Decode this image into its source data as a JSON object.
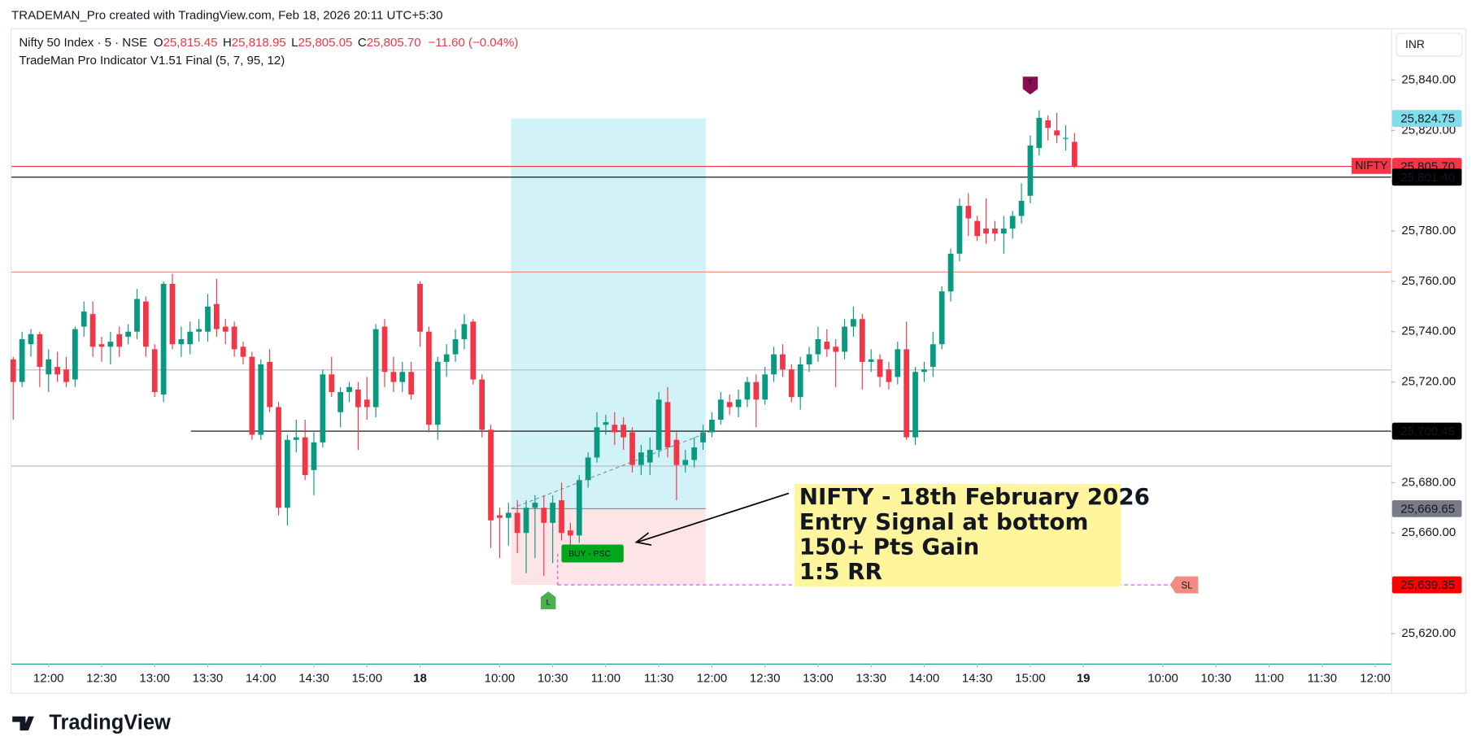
{
  "header": {
    "watermark": "TRADEMAN_Pro created with TradingView.com, Feb 18, 2026 20:11 UTC+5:30",
    "currency": "INR",
    "brand": "TradingView"
  },
  "legend": {
    "symbol": "Nifty 50 Index · 5 · NSE",
    "o_label": "O",
    "open": "25,815.45",
    "h_label": "H",
    "high": "25,818.95",
    "l_label": "L",
    "low": "25,805.05",
    "c_label": "C",
    "close": "25,805.70",
    "change": "−11.60 (−0.04%)",
    "indicator": "TradeMan Pro Indicator V1.51 Final (5, 7, 95, 12)"
  },
  "chart_data": {
    "type": "candlestick",
    "up_color": "#089981",
    "down_color": "#f23645",
    "grid": false,
    "xlim": [
      -0.2,
      155.8
    ],
    "ylim": [
      25608.05,
      25860.6
    ],
    "xticks": [
      {
        "value": 4,
        "label": "12:00"
      },
      {
        "value": 10,
        "label": "12:30"
      },
      {
        "value": 16,
        "label": "13:00"
      },
      {
        "value": 22,
        "label": "13:30"
      },
      {
        "value": 28,
        "label": "14:00"
      },
      {
        "value": 34,
        "label": "14:30"
      },
      {
        "value": 40,
        "label": "15:00"
      },
      {
        "value": 46,
        "label": "18"
      },
      {
        "value": 55,
        "label": "10:00"
      },
      {
        "value": 61,
        "label": "10:30"
      },
      {
        "value": 67,
        "label": "11:00"
      },
      {
        "value": 73,
        "label": "11:30"
      },
      {
        "value": 79,
        "label": "12:00"
      },
      {
        "value": 85,
        "label": "12:30"
      },
      {
        "value": 91,
        "label": "13:00"
      },
      {
        "value": 97,
        "label": "13:30"
      },
      {
        "value": 103,
        "label": "14:00"
      },
      {
        "value": 109,
        "label": "14:30"
      },
      {
        "value": 115,
        "label": "15:00"
      },
      {
        "value": 121,
        "label": "19"
      },
      {
        "value": 130,
        "label": "10:00"
      },
      {
        "value": 136,
        "label": "10:30"
      },
      {
        "value": 142,
        "label": "11:00"
      },
      {
        "value": 148,
        "label": "11:30"
      },
      {
        "value": 154,
        "label": "12:00"
      }
    ],
    "yticks": [
      {
        "value": 25840,
        "label": "25,840.00"
      },
      {
        "value": 25820,
        "label": "25,820.00"
      },
      {
        "value": 25800,
        "label": "25,800.00"
      },
      {
        "value": 25780,
        "label": "25,780.00"
      },
      {
        "value": 25760,
        "label": "25,760.00"
      },
      {
        "value": 25740,
        "label": "25,740.00"
      },
      {
        "value": 25720,
        "label": "25,720.00"
      },
      {
        "value": 25700,
        "label": "25,700.00"
      },
      {
        "value": 25680,
        "label": "25,680.00"
      },
      {
        "value": 25660,
        "label": "25,660.00"
      },
      {
        "value": 25640,
        "label": "25,640.00"
      },
      {
        "value": 25620,
        "label": "25,620.00"
      }
    ],
    "open": [
      25729,
      25720,
      25735,
      25739,
      25723,
      25726,
      25725,
      25721,
      25742,
      25747,
      25735,
      25734,
      25739,
      25738,
      25740,
      25752,
      25733,
      25715,
      25759,
      25735,
      25735,
      25740,
      25740,
      25751,
      25742,
      25742,
      25734,
      25730,
      25699,
      25728,
      25710,
      25670,
      25697,
      25698,
      25685,
      25696,
      25723,
      25708,
      25716,
      25717,
      25713,
      25710,
      25742,
      25724,
      25720,
      25724,
      25759,
      25740,
      25703,
      25728,
      25731,
      25737,
      25744,
      25721,
      25701,
      25667,
      25666,
      25668,
      25660,
      25670,
      25670,
      25664,
      25673,
      25661,
      25659,
      25681,
      25690,
      25703,
      25703,
      25703,
      25700,
      25687,
      25688,
      25693,
      25712,
      25697,
      25687,
      25689,
      25696,
      25700,
      25705,
      25712,
      25710,
      25713,
      25720,
      25713,
      25723,
      25731,
      25725,
      25714,
      25727,
      25731,
      25736,
      25734,
      25732,
      25742,
      25745,
      25728,
      25729,
      25725,
      25722,
      25733,
      25698,
      25724,
      25726,
      25735,
      25756,
      25771,
      25790,
      25784,
      25781,
      25781,
      25779,
      25781,
      25786,
      25794,
      25813,
      25824,
      25820,
      25817,
      25815.45
    ],
    "high": [
      25730,
      25740,
      25741,
      25740,
      25733,
      25732,
      25730,
      25742,
      25752,
      25752,
      25738,
      25740,
      25742,
      25743,
      25757,
      25754,
      25735,
      25760,
      25763,
      25742,
      25744,
      25745,
      25755,
      25761,
      25745,
      25744,
      25736,
      25732,
      25729,
      25733,
      25712,
      25699,
      25705,
      25705,
      25700,
      25725,
      25730,
      25718,
      25720,
      25720,
      25722,
      25743,
      25745,
      25730,
      25728,
      25728,
      25760,
      25742,
      25730,
      25735,
      25741,
      25747,
      25745,
      25723,
      25703,
      25670,
      25672,
      25673,
      25673,
      25675,
      25675,
      25675,
      25680,
      25664,
      25683,
      25692,
      25708,
      25707,
      25708,
      25706,
      25702,
      25695,
      25698,
      25716,
      25718,
      25700,
      25693,
      25698,
      25703,
      25708,
      25716,
      25715,
      25717,
      25722,
      25723,
      25726,
      25734,
      25735,
      25727,
      25730,
      25734,
      25742,
      25741,
      25737,
      25745,
      25750,
      25747,
      25733,
      25731,
      25728,
      25736,
      25744,
      25726,
      25728,
      25740,
      25758,
      25773,
      25793,
      25795,
      25786,
      25793,
      25784,
      25786,
      25788,
      25799,
      25818,
      25828,
      25826,
      25827,
      25822,
      25818.95
    ],
    "low": [
      25705,
      25718,
      25730,
      25718,
      25716,
      25720,
      25718,
      25718,
      25738,
      25730,
      25728,
      25727,
      25730,
      25735,
      25737,
      25730,
      25714,
      25712,
      25733,
      25730,
      25731,
      25736,
      25736,
      25738,
      25735,
      25730,
      25727,
      25697,
      25697,
      25708,
      25667,
      25663,
      25692,
      25681,
      25675,
      25694,
      25714,
      25702,
      25712,
      25693,
      25705,
      25706,
      25718,
      25716,
      25716,
      25713,
      25734,
      25700,
      25697,
      25722,
      25728,
      25733,
      25719,
      25698,
      25654,
      25650,
      25655,
      25652,
      25644,
      25650,
      25643,
      25648,
      25657,
      25655,
      25656,
      25678,
      25688,
      25699,
      25695,
      25693,
      25684,
      25683,
      25683,
      25690,
      25690,
      25673,
      25684,
      25686,
      25693,
      25698,
      25703,
      25707,
      25706,
      25710,
      25702,
      25711,
      25720,
      25722,
      25712,
      25709,
      25724,
      25728,
      25730,
      25718,
      25729,
      25738,
      25717,
      25724,
      25718,
      25717,
      25719,
      25697,
      25695,
      25720,
      25722,
      25733,
      25752,
      25768,
      25778,
      25776,
      25775,
      25776,
      25771,
      25777,
      25783,
      25791,
      25810,
      25816,
      25815,
      25812,
      25805.05
    ],
    "close": [
      25720,
      25737,
      25739,
      25726,
      25729,
      25723,
      25720,
      25741,
      25748,
      25734,
      25734,
      25736,
      25734,
      25740,
      25753,
      25734,
      25716,
      25759,
      25735,
      25737,
      25740,
      25741,
      25750,
      25741,
      25740,
      25733,
      25730,
      25699,
      25727,
      25710,
      25670,
      25697,
      25698,
      25683,
      25696,
      25723,
      25716,
      25716,
      25718,
      25710,
      25710,
      25741,
      25724,
      25720,
      25724,
      25715,
      25740,
      25703,
      25728,
      25731,
      25737,
      25743,
      25721,
      25701,
      25665,
      25666,
      25668,
      25660,
      25670,
      25672,
      25664,
      25672,
      25660,
      25659,
      25681,
      25690,
      25702,
      25704,
      25700,
      25698,
      25687,
      25692,
      25693,
      25713,
      25694,
      25687,
      25689,
      25694,
      25700,
      25705,
      25713,
      25710,
      25713,
      25720,
      25713,
      25723,
      25731,
      25725,
      25714,
      25727,
      25731,
      25737,
      25733,
      25732,
      25742,
      25745,
      25728,
      25729,
      25722,
      25720,
      25733,
      25698,
      25724,
      25725,
      25735,
      25756,
      25771,
      25790,
      25785,
      25778,
      25779,
      25779,
      25781,
      25786,
      25792,
      25814,
      25825,
      25821,
      25818,
      25817,
      25805.7
    ],
    "price_lines": [
      {
        "value": 25805.7,
        "color": "#f23645",
        "label": "25,805.70",
        "label_bg": "#f23645",
        "label_color": "#ffffff",
        "tag": "NIFTY"
      },
      {
        "value": 25801.4,
        "color": "#000000",
        "label": "25,801.40",
        "label_bg": "#000000",
        "label_color": "#ffffff"
      },
      {
        "value": 25763.7,
        "color": "#f4877f"
      },
      {
        "value": 25724.8,
        "color": "#b2b5be"
      },
      {
        "value": 25700.45,
        "color": "#000000",
        "start": 20.1,
        "label": "25,700.45",
        "label_bg": "#000000",
        "label_color": "#ffffff"
      },
      {
        "value": 25686.6,
        "color": "#b2b5be"
      }
    ],
    "position": {
      "from": 56.3,
      "to": 78.3,
      "target": 25824.75,
      "entry": 25669.65,
      "stop": 25639.35,
      "target_label": "25,824.75",
      "entry_label": "25,669.65",
      "stop_label": "25,639.35"
    },
    "markers": [
      {
        "text": "T",
        "x": 115,
        "y": 25838,
        "color": "#880e4f",
        "shape": "down"
      },
      {
        "text": "L",
        "x": 60.5,
        "y": 25633,
        "color": "#4caf50",
        "shape": "up"
      },
      {
        "text": "SL",
        "x": 132.5,
        "y": 25639.35,
        "color": "#f28b82",
        "shape": "left"
      }
    ],
    "signal": {
      "text": "BUY - PSC",
      "x": 65.5,
      "y": 25652,
      "color": "#00a61b"
    },
    "annotation": [
      "NIFTY - 18th February 2026",
      "Entry Signal at bottom",
      "150+ Pts Gain",
      "1:5 RR"
    ]
  }
}
